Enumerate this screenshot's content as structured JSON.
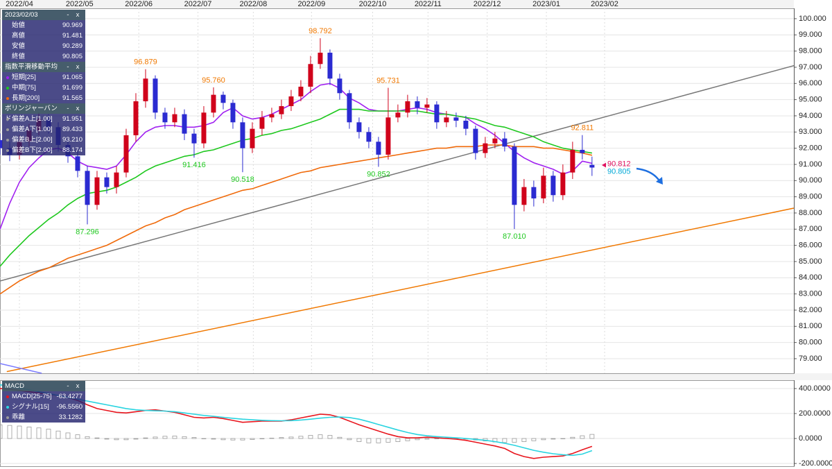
{
  "chart_data": [
    {
      "type": "candlestick",
      "x": [
        0,
        1,
        2,
        3,
        4,
        5,
        6,
        7,
        8,
        9,
        10,
        11,
        12,
        13,
        14,
        15,
        16,
        17,
        18,
        19,
        20,
        21,
        22,
        23,
        24,
        25,
        26,
        27,
        28,
        29,
        30,
        31,
        32,
        33,
        34,
        35,
        36,
        37,
        38,
        39,
        40,
        41,
        42,
        43,
        44,
        45,
        46,
        47,
        48,
        49,
        50,
        51,
        52,
        53,
        54,
        55,
        56,
        57,
        58,
        59,
        60,
        61
      ],
      "open": [
        92.5,
        92.0,
        91.6,
        92.4,
        93.1,
        93.8,
        93.3,
        92.2,
        91.5,
        90.6,
        88.5,
        90.2,
        89.6,
        90.5,
        92.8,
        94.9,
        96.3,
        94.2,
        93.6,
        94.1,
        92.9,
        92.3,
        94.2,
        95.3,
        94.8,
        93.6,
        92.0,
        93.2,
        93.9,
        94.1,
        94.6,
        95.2,
        95.8,
        97.2,
        97.9,
        96.3,
        95.4,
        93.6,
        93.0,
        92.4,
        91.6,
        93.9,
        94.2,
        94.9,
        94.5,
        94.7,
        93.6,
        93.9,
        93.7,
        93.2,
        91.7,
        92.3,
        92.6,
        92.1,
        88.5,
        89.6,
        88.9,
        90.3,
        89.1,
        90.5,
        91.9,
        90.969
      ],
      "high": [
        92.9,
        92.4,
        92.8,
        93.5,
        94.2,
        94.1,
        93.6,
        92.5,
        91.8,
        90.9,
        90.6,
        90.5,
        90.9,
        93.2,
        95.4,
        96.879,
        96.5,
        94.5,
        94.5,
        94.4,
        93.2,
        94.6,
        95.76,
        95.5,
        95.0,
        93.9,
        93.6,
        94.3,
        94.5,
        95.0,
        95.6,
        96.2,
        97.7,
        98.792,
        98.1,
        96.6,
        95.6,
        93.9,
        93.3,
        92.7,
        95.731,
        94.7,
        95.3,
        95.2,
        95.1,
        94.9,
        94.3,
        94.2,
        94.0,
        93.4,
        92.7,
        93.0,
        93.0,
        92.3,
        90.1,
        90.0,
        90.8,
        90.6,
        91.0,
        92.4,
        92.811,
        91.481
      ],
      "low": [
        91.6,
        91.2,
        91.3,
        92.1,
        92.8,
        92.9,
        91.8,
        91.1,
        90.2,
        87.296,
        88.2,
        89.2,
        89.2,
        90.2,
        92.4,
        94.5,
        93.8,
        93.2,
        93.3,
        92.5,
        91.416,
        92.0,
        93.9,
        94.4,
        93.2,
        90.518,
        91.7,
        92.8,
        93.6,
        93.8,
        94.3,
        94.9,
        95.4,
        96.9,
        95.9,
        95.0,
        93.2,
        92.6,
        92.0,
        90.852,
        91.3,
        93.6,
        93.9,
        94.1,
        94.2,
        93.2,
        93.3,
        93.3,
        92.8,
        91.3,
        91.4,
        92.0,
        91.8,
        87.01,
        88.1,
        88.4,
        88.6,
        88.7,
        88.8,
        90.1,
        91.3,
        90.289
      ],
      "close": [
        92.0,
        91.6,
        92.4,
        93.1,
        93.8,
        93.3,
        92.2,
        91.5,
        90.6,
        88.5,
        90.2,
        89.6,
        90.5,
        92.8,
        94.9,
        96.3,
        94.2,
        93.6,
        94.1,
        92.9,
        92.3,
        94.2,
        95.3,
        94.8,
        93.6,
        92.0,
        93.2,
        93.9,
        94.1,
        94.6,
        95.2,
        95.8,
        97.2,
        97.9,
        96.3,
        95.4,
        93.6,
        93.0,
        92.4,
        91.6,
        93.9,
        94.2,
        94.9,
        94.5,
        94.7,
        93.6,
        93.9,
        93.7,
        93.2,
        91.7,
        92.3,
        92.6,
        92.1,
        88.5,
        89.6,
        88.9,
        90.3,
        89.1,
        90.5,
        91.9,
        91.7,
        90.805
      ],
      "up_color": "#d0021b",
      "down_color": "#2b2bd1",
      "series": [
        {
          "name": "短期[25]",
          "color": "#a020f0",
          "values": [
            87.0,
            88.6,
            89.9,
            90.8,
            91.4,
            91.9,
            92.0,
            91.7,
            91.2,
            90.9,
            90.8,
            90.7,
            90.9,
            91.6,
            92.4,
            93.0,
            93.3,
            93.4,
            93.4,
            93.3,
            93.3,
            93.4,
            93.6,
            94.2,
            94.5,
            94.0,
            93.8,
            93.9,
            94.1,
            94.4,
            94.7,
            95.0,
            95.5,
            95.9,
            96.0,
            95.7,
            95.1,
            94.8,
            94.4,
            94.3,
            94.3,
            94.3,
            94.4,
            94.5,
            94.4,
            94.2,
            94.1,
            94.0,
            93.9,
            93.5,
            93.2,
            92.8,
            92.3,
            91.8,
            91.4,
            91.1,
            90.9,
            90.7,
            90.4,
            90.6,
            91.2,
            91.065
          ]
        },
        {
          "name": "中期[75]",
          "color": "#1ec81e",
          "values": [
            84.7,
            85.4,
            86.0,
            86.6,
            87.1,
            87.6,
            88.0,
            88.5,
            88.9,
            89.2,
            89.3,
            89.4,
            89.6,
            89.9,
            90.2,
            90.6,
            90.9,
            91.1,
            91.3,
            91.5,
            91.6,
            91.8,
            91.9,
            92.1,
            92.3,
            92.5,
            92.6,
            92.8,
            92.9,
            93.1,
            93.2,
            93.4,
            93.6,
            93.8,
            94.1,
            94.4,
            94.4,
            94.4,
            94.3,
            94.3,
            94.3,
            94.3,
            94.3,
            94.3,
            94.2,
            94.1,
            94.1,
            94.0,
            93.9,
            93.8,
            93.6,
            93.4,
            93.3,
            93.1,
            92.9,
            92.7,
            92.4,
            92.2,
            92.0,
            91.9,
            91.8,
            91.699
          ]
        },
        {
          "name": "長期[200]",
          "color": "#f06a0a",
          "values": [
            83.0,
            83.4,
            83.8,
            84.1,
            84.4,
            84.6,
            84.9,
            85.2,
            85.4,
            85.6,
            85.8,
            86.0,
            86.3,
            86.6,
            86.9,
            87.2,
            87.4,
            87.7,
            87.9,
            88.2,
            88.4,
            88.6,
            88.8,
            89.0,
            89.2,
            89.4,
            89.5,
            89.7,
            89.9,
            90.1,
            90.3,
            90.5,
            90.6,
            90.8,
            90.9,
            91.0,
            91.1,
            91.2,
            91.3,
            91.4,
            91.5,
            91.6,
            91.7,
            91.8,
            91.9,
            92.0,
            92.0,
            92.1,
            92.1,
            92.1,
            92.2,
            92.2,
            92.2,
            92.1,
            92.1,
            92.1,
            92.0,
            92.0,
            91.9,
            91.8,
            91.7,
            91.565
          ]
        }
      ],
      "trendlines": [
        {
          "color": "#777777",
          "points": [
            [
              0,
              83.8
            ],
            [
              81.8,
              97.1
            ]
          ]
        },
        {
          "color": "#f07800",
          "points": [
            [
              0.7,
              78.2
            ],
            [
              81.8,
              88.3
            ]
          ]
        },
        {
          "color": "#7b7bff",
          "points": [
            [
              0,
              78.7
            ],
            [
              4.3,
              78.1
            ]
          ]
        }
      ],
      "annotations": [
        {
          "x": 15,
          "value": 96.879,
          "label": "96.879",
          "color": "#f07800"
        },
        {
          "x": 9,
          "value": 87.296,
          "label": "87.296",
          "color": "#1ec81e"
        },
        {
          "x": 20,
          "value": 91.416,
          "label": "91.416",
          "color": "#1ec81e"
        },
        {
          "x": 22,
          "value": 95.76,
          "label": "95.760",
          "color": "#f07800"
        },
        {
          "x": 25,
          "value": 90.518,
          "label": "90.518",
          "color": "#1ec81e"
        },
        {
          "x": 33,
          "value": 98.792,
          "label": "98.792",
          "color": "#f07800"
        },
        {
          "x": 39,
          "value": 90.852,
          "label": "90.852",
          "color": "#1ec81e"
        },
        {
          "x": 40,
          "value": 95.731,
          "label": "95.731",
          "color": "#f07800"
        },
        {
          "x": 53,
          "value": 87.01,
          "label": "87.010",
          "color": "#1ec81e"
        },
        {
          "x": 60,
          "value": 92.811,
          "label": "92.811",
          "color": "#f07800"
        }
      ],
      "price_labels": [
        {
          "value": 90.812,
          "label": "90.812",
          "color": "#e0115f"
        },
        {
          "value": 90.805,
          "label": "90.805",
          "color": "#00a8d6"
        }
      ],
      "xlim": [
        0,
        81.8
      ],
      "xticks": [
        {
          "value": 2,
          "label": "2022/04"
        },
        {
          "value": 8.2,
          "label": "2022/05"
        },
        {
          "value": 14.3,
          "label": "2022/06"
        },
        {
          "value": 20.4,
          "label": "2022/07"
        },
        {
          "value": 26.1,
          "label": "2022/08"
        },
        {
          "value": 32.1,
          "label": "2022/09"
        },
        {
          "value": 38.4,
          "label": "2022/10"
        },
        {
          "value": 44.1,
          "label": "2022/11"
        },
        {
          "value": 50.2,
          "label": "2022/12"
        },
        {
          "value": 56.3,
          "label": "2023/01"
        },
        {
          "value": 62.3,
          "label": "2023/02"
        }
      ],
      "ylim": [
        78.1,
        100.64
      ],
      "yticks": [
        {
          "value": 79,
          "label": "79.000"
        },
        {
          "value": 80,
          "label": "80.000"
        },
        {
          "value": 81,
          "label": "81.000"
        },
        {
          "value": 82,
          "label": "82.000"
        },
        {
          "value": 83,
          "label": "83.000"
        },
        {
          "value": 84,
          "label": "84.000"
        },
        {
          "value": 85,
          "label": "85.000"
        },
        {
          "value": 86,
          "label": "86.000"
        },
        {
          "value": 87,
          "label": "87.000"
        },
        {
          "value": 88,
          "label": "88.000"
        },
        {
          "value": 89,
          "label": "89.000"
        },
        {
          "value": 90,
          "label": "90.000"
        },
        {
          "value": 91,
          "label": "91.000"
        },
        {
          "value": 92,
          "label": "92.000"
        },
        {
          "value": 93,
          "label": "93.000"
        },
        {
          "value": 94,
          "label": "94.000"
        },
        {
          "value": 95,
          "label": "95.000"
        },
        {
          "value": 96,
          "label": "96.000"
        },
        {
          "value": 97,
          "label": "97.000"
        },
        {
          "value": 98,
          "label": "98.000"
        },
        {
          "value": 99,
          "label": "99.000"
        },
        {
          "value": 100,
          "label": "100.000"
        }
      ],
      "grid": true
    },
    {
      "type": "line",
      "x": [
        0,
        1,
        2,
        3,
        4,
        5,
        6,
        7,
        8,
        9,
        10,
        11,
        12,
        13,
        14,
        15,
        16,
        17,
        18,
        19,
        20,
        21,
        22,
        23,
        24,
        25,
        26,
        27,
        28,
        29,
        30,
        31,
        32,
        33,
        34,
        35,
        36,
        37,
        38,
        39,
        40,
        41,
        42,
        43,
        44,
        45,
        46,
        47,
        48,
        49,
        50,
        51,
        52,
        53,
        54,
        55,
        56,
        57,
        58,
        59,
        60,
        61
      ],
      "series": [
        {
          "name": "MACD[25-75]",
          "color": "#e8141c",
          "style": "line",
          "values": [
            400,
            395,
            385,
            375,
            365,
            355,
            345,
            330,
            305,
            270,
            240,
            225,
            210,
            205,
            215,
            225,
            230,
            220,
            210,
            190,
            170,
            165,
            170,
            160,
            145,
            130,
            135,
            140,
            140,
            140,
            150,
            165,
            180,
            195,
            190,
            170,
            140,
            110,
            85,
            60,
            35,
            15,
            5,
            5,
            10,
            5,
            0,
            -5,
            -15,
            -30,
            -45,
            -60,
            -80,
            -120,
            -145,
            -160,
            -150,
            -145,
            -140,
            -120,
            -90,
            -63
          ]
        },
        {
          "name": "シグナル[15]",
          "color": "#2ad4e0",
          "style": "line",
          "values": [
            430,
            420,
            405,
            390,
            375,
            360,
            345,
            330,
            315,
            300,
            285,
            270,
            255,
            240,
            230,
            225,
            222,
            220,
            215,
            205,
            195,
            185,
            178,
            170,
            162,
            155,
            150,
            146,
            143,
            142,
            143,
            148,
            155,
            163,
            170,
            172,
            168,
            155,
            135,
            112,
            90,
            68,
            48,
            32,
            22,
            15,
            10,
            5,
            0,
            -7,
            -15,
            -25,
            -38,
            -55,
            -75,
            -95,
            -110,
            -122,
            -130,
            -135,
            -125,
            -97
          ]
        },
        {
          "name": "乖離",
          "color": "#9a9a9a",
          "style": "bar",
          "values": [
            110,
            105,
            100,
            92,
            85,
            75,
            60,
            45,
            30,
            15,
            5,
            -5,
            -10,
            -10,
            -5,
            5,
            12,
            18,
            20,
            15,
            8,
            0,
            -5,
            -10,
            -12,
            -12,
            -8,
            -3,
            3,
            8,
            12,
            18,
            25,
            30,
            25,
            10,
            -10,
            -25,
            -35,
            -35,
            -30,
            -25,
            -18,
            -10,
            -5,
            0,
            3,
            0,
            -5,
            -12,
            -20,
            -28,
            -32,
            -30,
            -25,
            -18,
            -10,
            -5,
            0,
            10,
            22,
            33
          ]
        }
      ],
      "xlim": [
        0,
        81.8
      ],
      "ylim": [
        -222,
        467
      ],
      "yticks": [
        {
          "value": 400,
          "label": "400.0000"
        },
        {
          "value": 200,
          "label": "200.0000"
        },
        {
          "value": 0,
          "label": "0.0000"
        },
        {
          "value": -200,
          "label": "-200.0000"
        }
      ],
      "grid": true
    }
  ],
  "panels": [
    {
      "title": "2023/02/03",
      "rows": [
        {
          "label": "始値",
          "value": "90.969"
        },
        {
          "label": "高値",
          "value": "91.481"
        },
        {
          "label": "安値",
          "value": "90.289"
        },
        {
          "label": "終値",
          "value": "90.805"
        }
      ]
    },
    {
      "title": "指数平滑移動平均",
      "chart": 0,
      "rows": [
        {
          "value": "91.065"
        },
        {
          "value": "91.699"
        },
        {
          "value": "91.565"
        }
      ]
    },
    {
      "title": "ボリンジャーバンド",
      "rows": [
        {
          "label": "偏差A上[1.00]",
          "value": "91.951"
        },
        {
          "label": "偏差A下[1.00]",
          "value": "89.433"
        },
        {
          "label": "偏差B上[2.00]",
          "value": "93.210"
        },
        {
          "label": "偏差B下[2.00]",
          "value": "88.174"
        }
      ]
    },
    {
      "title": "MACD",
      "chart": 1,
      "rows": [
        {
          "value": "-63.4277"
        },
        {
          "value": "-96.5560"
        },
        {
          "value": "33.1282"
        }
      ]
    }
  ],
  "controls": [
    "-",
    "x"
  ]
}
